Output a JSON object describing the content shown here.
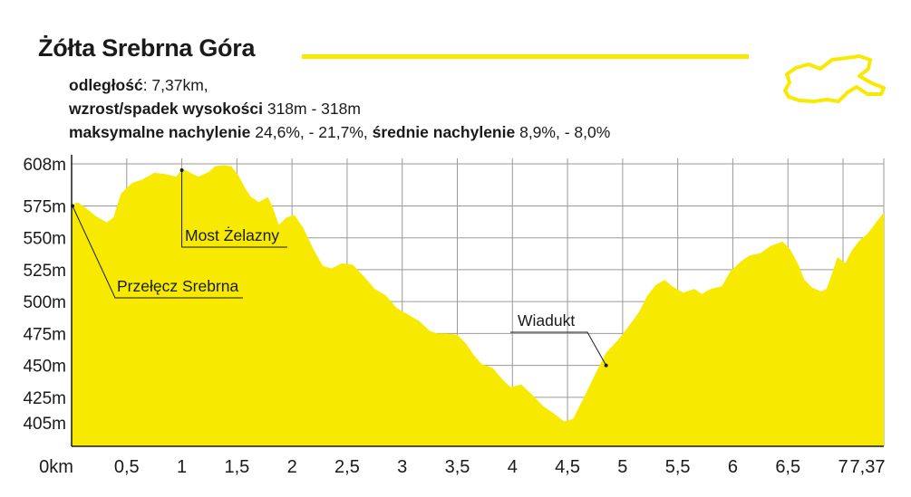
{
  "header": {
    "title": "Żółta Srebrna Góra",
    "distance_label": "odległość",
    "distance_value": ": 7,37km,",
    "elevation_label": "wzrost/spadek wysokości",
    "elevation_value": " 318m - 318m",
    "max_slope_label": "maksymalne nachylenie",
    "max_slope_value": " 24,6%, - 21,7%, ",
    "avg_slope_label": "średnie nachylenie",
    "avg_slope_value": " 8,9%, - 8,0%"
  },
  "colors": {
    "fill": "#f7ea00",
    "accent": "#f7ea00",
    "grid": "#9a9a9a",
    "axis": "#1a1a1a"
  },
  "chart_data": {
    "type": "area",
    "title": "Żółta Srebrna Góra",
    "xlabel": "",
    "ylabel": "",
    "x_unit": "km",
    "y_unit": "m",
    "xlim": [
      0,
      7.37
    ],
    "ylim": [
      378,
      608
    ],
    "grid": true,
    "y_ticks": [
      {
        "value": 608,
        "label": "608m"
      },
      {
        "value": 575,
        "label": "575m"
      },
      {
        "value": 550,
        "label": "550m"
      },
      {
        "value": 525,
        "label": "525m"
      },
      {
        "value": 500,
        "label": "500m"
      },
      {
        "value": 475,
        "label": "475m"
      },
      {
        "value": 450,
        "label": "450m"
      },
      {
        "value": 425,
        "label": "425m"
      },
      {
        "value": 405,
        "label": "405m"
      }
    ],
    "x_ticks": [
      {
        "value": 0,
        "label": "0km"
      },
      {
        "value": 0.5,
        "label": "0,5"
      },
      {
        "value": 1,
        "label": "1"
      },
      {
        "value": 1.5,
        "label": "1,5"
      },
      {
        "value": 2,
        "label": "2"
      },
      {
        "value": 2.5,
        "label": "2,5"
      },
      {
        "value": 3,
        "label": "3"
      },
      {
        "value": 3.5,
        "label": "3,5"
      },
      {
        "value": 4,
        "label": "4"
      },
      {
        "value": 4.5,
        "label": "4,5"
      },
      {
        "value": 5,
        "label": "5"
      },
      {
        "value": 5.5,
        "label": "5,5"
      },
      {
        "value": 6,
        "label": "6"
      },
      {
        "value": 6.5,
        "label": "6,5"
      },
      {
        "value": 7,
        "label": "7"
      },
      {
        "value": 7.37,
        "label": "7,37"
      }
    ],
    "profile": [
      [
        0,
        575
      ],
      [
        0.05,
        578
      ],
      [
        0.12,
        574
      ],
      [
        0.22,
        567
      ],
      [
        0.32,
        562
      ],
      [
        0.38,
        566
      ],
      [
        0.45,
        585
      ],
      [
        0.55,
        593
      ],
      [
        0.65,
        596
      ],
      [
        0.75,
        601
      ],
      [
        0.85,
        600
      ],
      [
        0.95,
        598
      ],
      [
        1.0,
        604
      ],
      [
        1.06,
        602
      ],
      [
        1.1,
        600
      ],
      [
        1.15,
        598
      ],
      [
        1.25,
        602
      ],
      [
        1.3,
        606
      ],
      [
        1.38,
        607
      ],
      [
        1.45,
        606
      ],
      [
        1.52,
        598
      ],
      [
        1.58,
        588
      ],
      [
        1.63,
        582
      ],
      [
        1.7,
        578
      ],
      [
        1.78,
        582
      ],
      [
        1.82,
        575
      ],
      [
        1.88,
        560
      ],
      [
        1.95,
        566
      ],
      [
        2.02,
        568
      ],
      [
        2.1,
        558
      ],
      [
        2.2,
        540
      ],
      [
        2.28,
        528
      ],
      [
        2.36,
        526
      ],
      [
        2.45,
        530
      ],
      [
        2.55,
        529
      ],
      [
        2.65,
        520
      ],
      [
        2.75,
        510
      ],
      [
        2.85,
        505
      ],
      [
        2.95,
        495
      ],
      [
        3.05,
        490
      ],
      [
        3.15,
        485
      ],
      [
        3.25,
        477
      ],
      [
        3.32,
        475
      ],
      [
        3.4,
        475
      ],
      [
        3.5,
        474
      ],
      [
        3.58,
        467
      ],
      [
        3.65,
        458
      ],
      [
        3.72,
        451
      ],
      [
        3.82,
        448
      ],
      [
        3.9,
        440
      ],
      [
        3.98,
        433
      ],
      [
        4.08,
        435
      ],
      [
        4.18,
        427
      ],
      [
        4.28,
        418
      ],
      [
        4.38,
        412
      ],
      [
        4.47,
        406
      ],
      [
        4.55,
        408
      ],
      [
        4.65,
        425
      ],
      [
        4.75,
        443
      ],
      [
        4.85,
        460
      ],
      [
        4.95,
        469
      ],
      [
        5.05,
        480
      ],
      [
        5.15,
        492
      ],
      [
        5.22,
        504
      ],
      [
        5.3,
        513
      ],
      [
        5.38,
        517
      ],
      [
        5.45,
        512
      ],
      [
        5.55,
        507
      ],
      [
        5.65,
        510
      ],
      [
        5.72,
        506
      ],
      [
        5.8,
        510
      ],
      [
        5.9,
        512
      ],
      [
        5.98,
        524
      ],
      [
        6.08,
        532
      ],
      [
        6.15,
        536
      ],
      [
        6.25,
        538
      ],
      [
        6.35,
        544
      ],
      [
        6.45,
        547
      ],
      [
        6.52,
        541
      ],
      [
        6.6,
        528
      ],
      [
        6.65,
        517
      ],
      [
        6.72,
        511
      ],
      [
        6.8,
        508
      ],
      [
        6.85,
        510
      ],
      [
        6.9,
        522
      ],
      [
        6.95,
        535
      ],
      [
        7.02,
        530
      ],
      [
        7.08,
        540
      ],
      [
        7.15,
        548
      ],
      [
        7.22,
        553
      ],
      [
        7.3,
        562
      ],
      [
        7.37,
        570
      ]
    ],
    "annotations": [
      {
        "label": "Przełęcz Srebrna",
        "x": 0.0,
        "y": 575
      },
      {
        "label": "Most Żelazny",
        "x": 1.0,
        "y": 600
      },
      {
        "label": "Wiadukt",
        "x": 4.85,
        "y": 450
      }
    ]
  }
}
